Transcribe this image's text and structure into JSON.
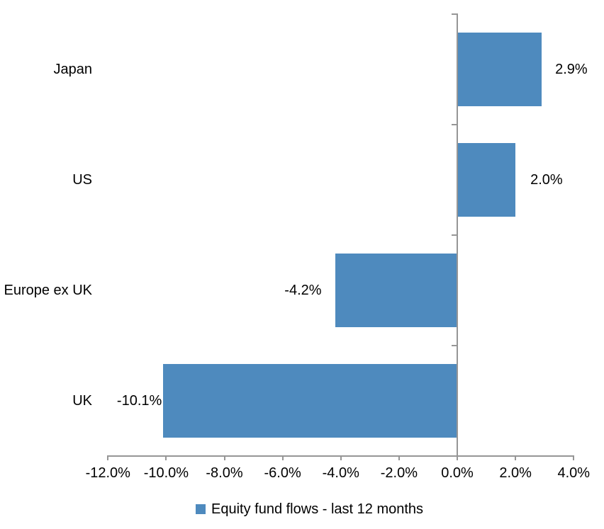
{
  "chart_data": {
    "type": "bar",
    "orientation": "horizontal",
    "title": "",
    "categories": [
      "Japan",
      "US",
      "Europe ex UK",
      "UK"
    ],
    "series": [
      {
        "name": "Equity fund flows - last 12 months",
        "values": [
          2.9,
          2.0,
          -4.2,
          -10.1
        ],
        "data_labels": [
          "2.9%",
          "2.0%",
          "-4.2%",
          "-10.1%"
        ]
      }
    ],
    "x_axis": {
      "min": -12,
      "max": 4,
      "step": 2,
      "tick_labels": [
        "-12.0%",
        "-10.0%",
        "-8.0%",
        "-6.0%",
        "-4.0%",
        "-2.0%",
        "0.0%",
        "2.0%",
        "4.0%"
      ]
    },
    "grid": false,
    "legend": {
      "position": "bottom",
      "label": "Equity fund flows - last 12 months"
    },
    "colors": {
      "bar": "#4E8ABE",
      "axis": "#969696",
      "text": "#000000",
      "background": "#FFFFFF"
    }
  }
}
